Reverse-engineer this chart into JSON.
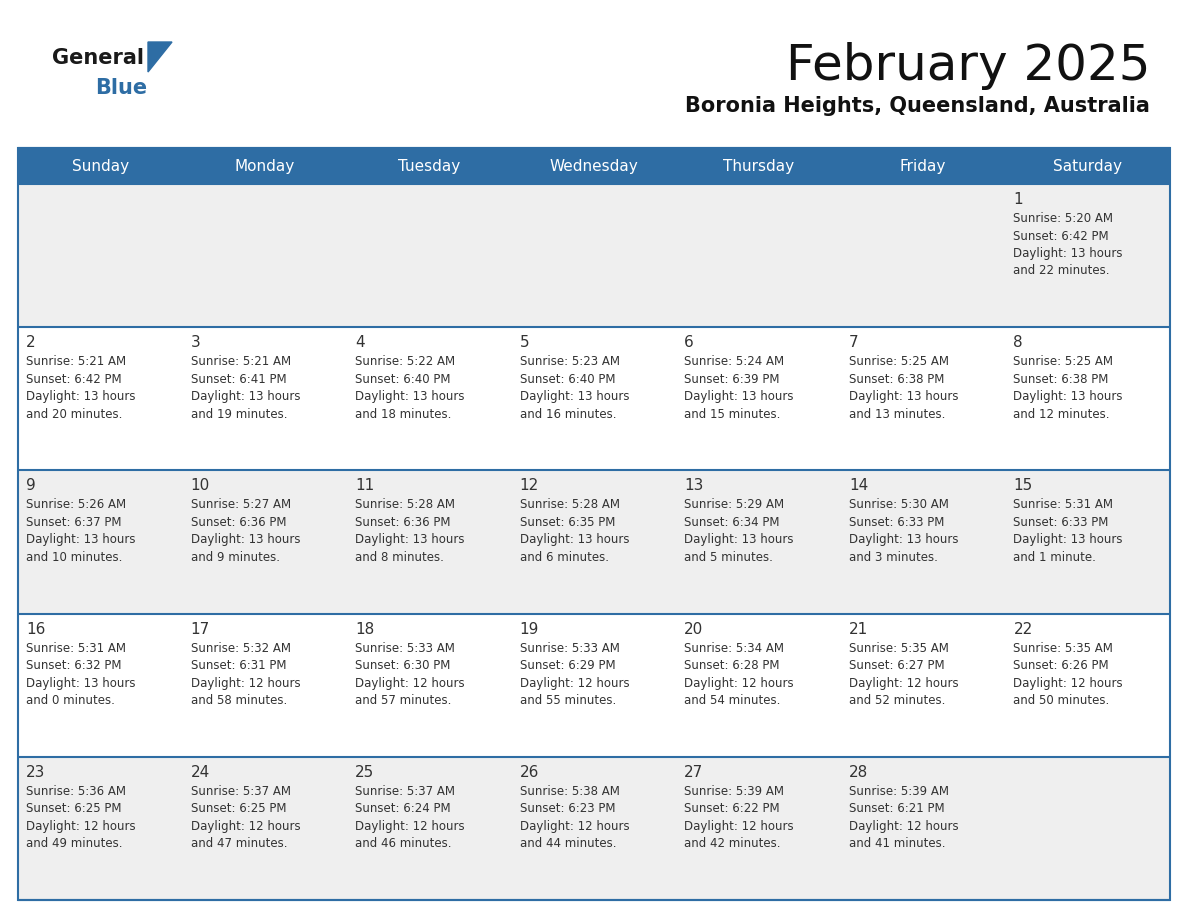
{
  "title": "February 2025",
  "subtitle": "Boronia Heights, Queensland, Australia",
  "header_bg": "#2E6DA4",
  "header_text_color": "#FFFFFF",
  "cell_bg_light": "#EFEFEF",
  "cell_bg_white": "#FFFFFF",
  "grid_line_color": "#2E6DA4",
  "day_number_color": "#333333",
  "text_color": "#333333",
  "logo_text_color": "#1a1a1a",
  "logo_blue_color": "#2E6DA4",
  "days_of_week": [
    "Sunday",
    "Monday",
    "Tuesday",
    "Wednesday",
    "Thursday",
    "Friday",
    "Saturday"
  ],
  "calendar_data": [
    [
      null,
      null,
      null,
      null,
      null,
      null,
      {
        "day": "1",
        "sunrise": "5:20 AM",
        "sunset": "6:42 PM",
        "daylight_line1": "Daylight: 13 hours",
        "daylight_line2": "and 22 minutes."
      }
    ],
    [
      {
        "day": "2",
        "sunrise": "5:21 AM",
        "sunset": "6:42 PM",
        "daylight_line1": "Daylight: 13 hours",
        "daylight_line2": "and 20 minutes."
      },
      {
        "day": "3",
        "sunrise": "5:21 AM",
        "sunset": "6:41 PM",
        "daylight_line1": "Daylight: 13 hours",
        "daylight_line2": "and 19 minutes."
      },
      {
        "day": "4",
        "sunrise": "5:22 AM",
        "sunset": "6:40 PM",
        "daylight_line1": "Daylight: 13 hours",
        "daylight_line2": "and 18 minutes."
      },
      {
        "day": "5",
        "sunrise": "5:23 AM",
        "sunset": "6:40 PM",
        "daylight_line1": "Daylight: 13 hours",
        "daylight_line2": "and 16 minutes."
      },
      {
        "day": "6",
        "sunrise": "5:24 AM",
        "sunset": "6:39 PM",
        "daylight_line1": "Daylight: 13 hours",
        "daylight_line2": "and 15 minutes."
      },
      {
        "day": "7",
        "sunrise": "5:25 AM",
        "sunset": "6:38 PM",
        "daylight_line1": "Daylight: 13 hours",
        "daylight_line2": "and 13 minutes."
      },
      {
        "day": "8",
        "sunrise": "5:25 AM",
        "sunset": "6:38 PM",
        "daylight_line1": "Daylight: 13 hours",
        "daylight_line2": "and 12 minutes."
      }
    ],
    [
      {
        "day": "9",
        "sunrise": "5:26 AM",
        "sunset": "6:37 PM",
        "daylight_line1": "Daylight: 13 hours",
        "daylight_line2": "and 10 minutes."
      },
      {
        "day": "10",
        "sunrise": "5:27 AM",
        "sunset": "6:36 PM",
        "daylight_line1": "Daylight: 13 hours",
        "daylight_line2": "and 9 minutes."
      },
      {
        "day": "11",
        "sunrise": "5:28 AM",
        "sunset": "6:36 PM",
        "daylight_line1": "Daylight: 13 hours",
        "daylight_line2": "and 8 minutes."
      },
      {
        "day": "12",
        "sunrise": "5:28 AM",
        "sunset": "6:35 PM",
        "daylight_line1": "Daylight: 13 hours",
        "daylight_line2": "and 6 minutes."
      },
      {
        "day": "13",
        "sunrise": "5:29 AM",
        "sunset": "6:34 PM",
        "daylight_line1": "Daylight: 13 hours",
        "daylight_line2": "and 5 minutes."
      },
      {
        "day": "14",
        "sunrise": "5:30 AM",
        "sunset": "6:33 PM",
        "daylight_line1": "Daylight: 13 hours",
        "daylight_line2": "and 3 minutes."
      },
      {
        "day": "15",
        "sunrise": "5:31 AM",
        "sunset": "6:33 PM",
        "daylight_line1": "Daylight: 13 hours",
        "daylight_line2": "and 1 minute."
      }
    ],
    [
      {
        "day": "16",
        "sunrise": "5:31 AM",
        "sunset": "6:32 PM",
        "daylight_line1": "Daylight: 13 hours",
        "daylight_line2": "and 0 minutes."
      },
      {
        "day": "17",
        "sunrise": "5:32 AM",
        "sunset": "6:31 PM",
        "daylight_line1": "Daylight: 12 hours",
        "daylight_line2": "and 58 minutes."
      },
      {
        "day": "18",
        "sunrise": "5:33 AM",
        "sunset": "6:30 PM",
        "daylight_line1": "Daylight: 12 hours",
        "daylight_line2": "and 57 minutes."
      },
      {
        "day": "19",
        "sunrise": "5:33 AM",
        "sunset": "6:29 PM",
        "daylight_line1": "Daylight: 12 hours",
        "daylight_line2": "and 55 minutes."
      },
      {
        "day": "20",
        "sunrise": "5:34 AM",
        "sunset": "6:28 PM",
        "daylight_line1": "Daylight: 12 hours",
        "daylight_line2": "and 54 minutes."
      },
      {
        "day": "21",
        "sunrise": "5:35 AM",
        "sunset": "6:27 PM",
        "daylight_line1": "Daylight: 12 hours",
        "daylight_line2": "and 52 minutes."
      },
      {
        "day": "22",
        "sunrise": "5:35 AM",
        "sunset": "6:26 PM",
        "daylight_line1": "Daylight: 12 hours",
        "daylight_line2": "and 50 minutes."
      }
    ],
    [
      {
        "day": "23",
        "sunrise": "5:36 AM",
        "sunset": "6:25 PM",
        "daylight_line1": "Daylight: 12 hours",
        "daylight_line2": "and 49 minutes."
      },
      {
        "day": "24",
        "sunrise": "5:37 AM",
        "sunset": "6:25 PM",
        "daylight_line1": "Daylight: 12 hours",
        "daylight_line2": "and 47 minutes."
      },
      {
        "day": "25",
        "sunrise": "5:37 AM",
        "sunset": "6:24 PM",
        "daylight_line1": "Daylight: 12 hours",
        "daylight_line2": "and 46 minutes."
      },
      {
        "day": "26",
        "sunrise": "5:38 AM",
        "sunset": "6:23 PM",
        "daylight_line1": "Daylight: 12 hours",
        "daylight_line2": "and 44 minutes."
      },
      {
        "day": "27",
        "sunrise": "5:39 AM",
        "sunset": "6:22 PM",
        "daylight_line1": "Daylight: 12 hours",
        "daylight_line2": "and 42 minutes."
      },
      {
        "day": "28",
        "sunrise": "5:39 AM",
        "sunset": "6:21 PM",
        "daylight_line1": "Daylight: 12 hours",
        "daylight_line2": "and 41 minutes."
      },
      null
    ]
  ]
}
